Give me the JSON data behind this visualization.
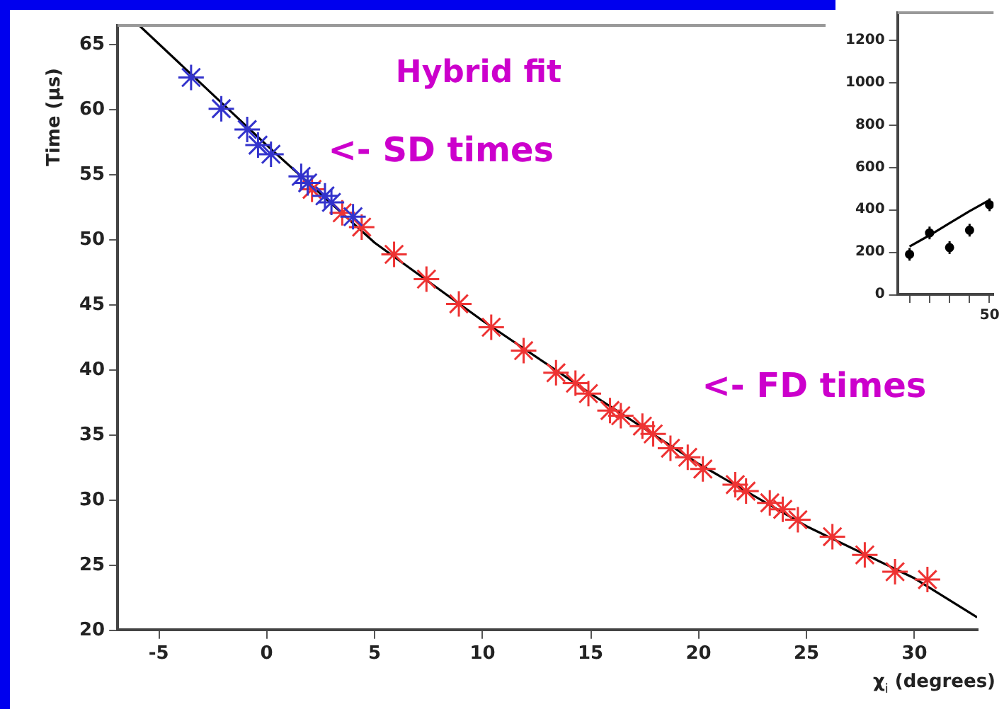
{
  "chart_data": [
    {
      "type": "scatter",
      "title": "Hybrid fit",
      "xlabel": "χ$_{i}$ (degrees)",
      "ylabel": "Time (μs)",
      "xlim": [
        -6.9,
        32.9
      ],
      "ylim": [
        20,
        66.5
      ],
      "xticks": [
        -5,
        0,
        5,
        10,
        15,
        20,
        25,
        30
      ],
      "yticks": [
        20,
        25,
        30,
        35,
        40,
        45,
        50,
        55,
        60,
        65
      ],
      "marker": "cross",
      "series": [
        {
          "color": "#3333cc",
          "x": [
            -3.5,
            -2.1,
            -0.9,
            -0.4,
            0.2,
            1.6,
            1.9,
            2.7,
            3.0,
            4.0
          ],
          "values": [
            62.5,
            60.1,
            58.5,
            57.3,
            56.6,
            54.9,
            54.4,
            53.4,
            52.9,
            51.8
          ]
        },
        {
          "color": "#ee3333",
          "x": [
            2.1,
            3.5,
            4.4,
            5.9,
            7.4,
            8.9,
            10.4,
            11.9,
            13.4,
            14.3,
            14.9,
            15.9,
            16.4,
            17.4,
            17.9,
            18.7,
            19.5,
            20.2,
            21.7,
            22.2,
            23.3,
            23.9,
            24.6,
            26.2,
            27.7,
            29.1,
            30.6
          ],
          "values": [
            53.9,
            52.1,
            51.0,
            48.9,
            47.0,
            45.1,
            43.3,
            41.5,
            39.8,
            39.0,
            38.2,
            36.9,
            36.5,
            35.7,
            35.1,
            34.0,
            33.3,
            32.4,
            31.2,
            30.7,
            29.8,
            29.3,
            28.5,
            27.2,
            25.8,
            24.5,
            23.9
          ]
        },
        {
          "type": "line",
          "marker": "none",
          "color": "#000000",
          "x": [
            -5.9,
            0,
            5,
            10,
            15,
            20,
            25,
            30,
            32.9
          ],
          "values": [
            66.5,
            57.3,
            49.8,
            43.8,
            38.2,
            32.8,
            28.0,
            24.0,
            21.0
          ]
        }
      ],
      "annotations": [
        "<- SD times",
        "<- FD times"
      ]
    },
    {
      "type": "scatter",
      "categories": [
        null,
        null,
        null,
        null,
        "50"
      ],
      "ylim": [
        0,
        1330
      ],
      "yticks": [
        0,
        200,
        400,
        600,
        800,
        1000,
        1200
      ],
      "marker": "circle",
      "series": [
        {
          "color": "#000000",
          "values": [
            189,
            290,
            221,
            303,
            423
          ],
          "errors": [
            30,
            30,
            30,
            30,
            30
          ]
        },
        {
          "type": "line",
          "marker": "none",
          "color": "#000000",
          "values": [
            226,
            279,
            336,
            393,
            446
          ]
        }
      ]
    }
  ]
}
